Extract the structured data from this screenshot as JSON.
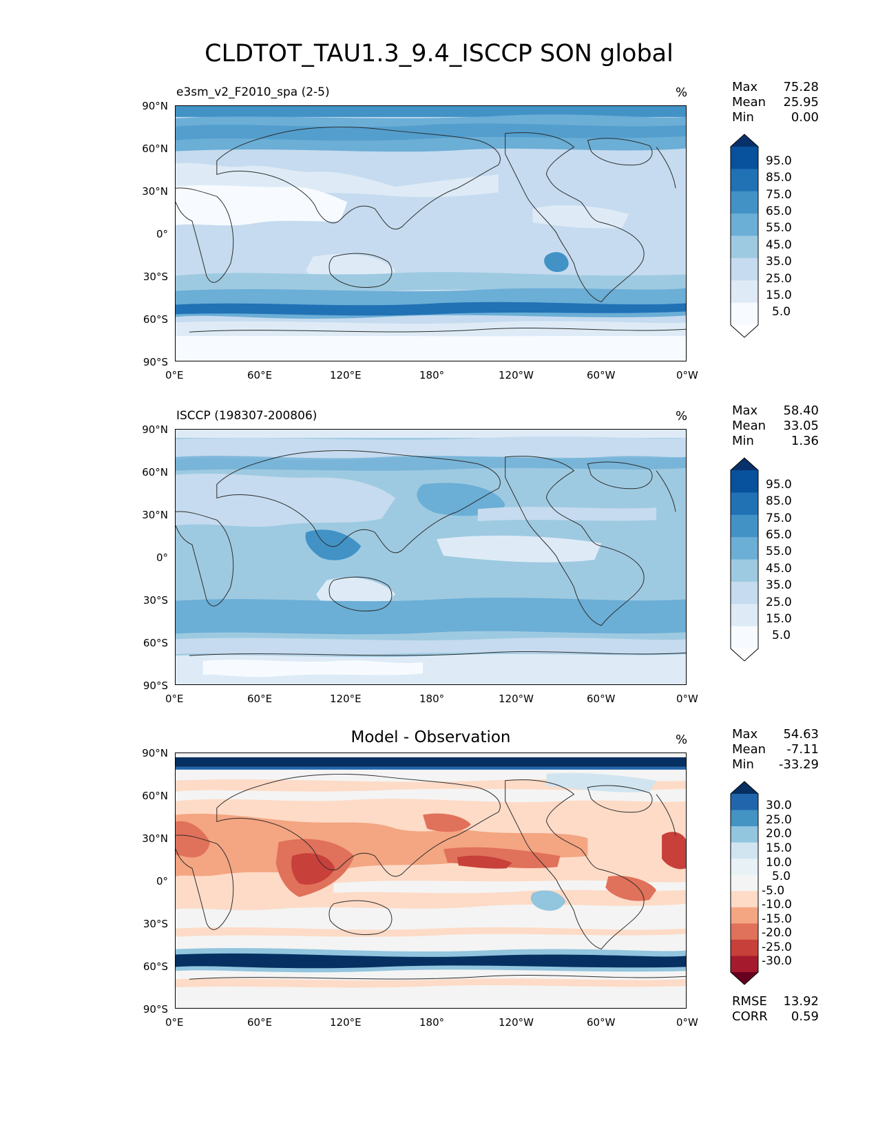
{
  "figure_title": "CLDTOT_TAU1.3_9.4_ISCCP SON global",
  "chart_data": [
    {
      "type": "heatmap",
      "kind": "filled contour map (global)",
      "title": "e3sm_v2_F2010_spa (2-5)",
      "units": "%",
      "stats": [
        {
          "label": "Max",
          "value": "75.28"
        },
        {
          "label": "Mean",
          "value": "25.95"
        },
        {
          "label": "Min",
          "value": "0.00"
        }
      ],
      "colorbar_levels": [
        "95.0",
        "85.0",
        "75.0",
        "65.0",
        "55.0",
        "45.0",
        "35.0",
        "25.0",
        "15.0",
        "5.0"
      ],
      "colorbar_colors": [
        "#08306b",
        "#08519c",
        "#2171b5",
        "#4292c6",
        "#6baed6",
        "#9ecae1",
        "#c6dbef",
        "#deebf7",
        "#f7fbff",
        "#ffffff"
      ],
      "x_ticks": [
        "0°E",
        "60°E",
        "120°E",
        "180°",
        "120°W",
        "60°W",
        "0°W"
      ],
      "y_ticks": [
        "90°N",
        "60°N",
        "30°N",
        "0°",
        "30°S",
        "60°S",
        "90°S"
      ],
      "xlim": [
        0,
        360
      ],
      "ylim": [
        -90,
        90
      ]
    },
    {
      "type": "heatmap",
      "kind": "filled contour map (global)",
      "title": "ISCCP (198307-200806)",
      "units": "%",
      "stats": [
        {
          "label": "Max",
          "value": "58.40"
        },
        {
          "label": "Mean",
          "value": "33.05"
        },
        {
          "label": "Min",
          "value": "1.36"
        }
      ],
      "colorbar_levels": [
        "95.0",
        "85.0",
        "75.0",
        "65.0",
        "55.0",
        "45.0",
        "35.0",
        "25.0",
        "15.0",
        "5.0"
      ],
      "colorbar_colors": [
        "#08306b",
        "#08519c",
        "#2171b5",
        "#4292c6",
        "#6baed6",
        "#9ecae1",
        "#c6dbef",
        "#deebf7",
        "#f7fbff",
        "#ffffff"
      ],
      "x_ticks": [
        "0°E",
        "60°E",
        "120°E",
        "180°",
        "120°W",
        "60°W",
        "0°W"
      ],
      "y_ticks": [
        "90°N",
        "60°N",
        "30°N",
        "0°",
        "30°S",
        "60°S",
        "90°S"
      ],
      "xlim": [
        0,
        360
      ],
      "ylim": [
        -90,
        90
      ]
    },
    {
      "type": "heatmap",
      "kind": "filled contour map (difference)",
      "title": "Model - Observation",
      "units": "%",
      "stats": [
        {
          "label": "Max",
          "value": "54.63"
        },
        {
          "label": "Mean",
          "value": "-7.11"
        },
        {
          "label": "Min",
          "value": "-33.29"
        }
      ],
      "colorbar_levels": [
        "30.0",
        "25.0",
        "20.0",
        "15.0",
        "10.0",
        "5.0",
        "-5.0",
        "-10.0",
        "-15.0",
        "-20.0",
        "-25.0",
        "-30.0"
      ],
      "colorbar_colors": [
        "#053061",
        "#2166ac",
        "#4393c3",
        "#92c5de",
        "#d1e5f0",
        "#e8f1f6",
        "#f4f4f4",
        "#fddbc7",
        "#f4a582",
        "#e0715a",
        "#c8403a",
        "#a51a2c",
        "#67001f"
      ],
      "x_ticks": [
        "0°E",
        "60°E",
        "120°E",
        "180°",
        "120°W",
        "60°W",
        "0°W"
      ],
      "y_ticks": [
        "90°N",
        "60°N",
        "30°N",
        "0°",
        "30°S",
        "60°S",
        "90°S"
      ],
      "xlim": [
        0,
        360
      ],
      "ylim": [
        -90,
        90
      ],
      "metrics": [
        {
          "label": "RMSE",
          "value": "13.92"
        },
        {
          "label": "CORR",
          "value": "0.59"
        }
      ]
    }
  ]
}
